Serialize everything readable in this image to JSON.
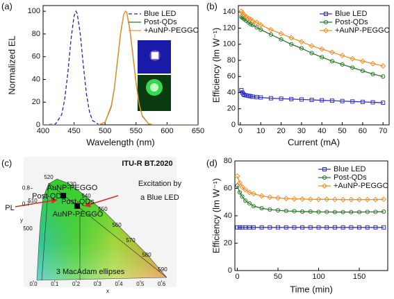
{
  "chart_data": [
    {
      "type": "line",
      "panel_label": "(a)",
      "xlabel": "Wavelength (nm)",
      "ylabel": "Normalized EL",
      "x": [
        400,
        420,
        430,
        435,
        440,
        445,
        450,
        453,
        455,
        460,
        465,
        470,
        475,
        480,
        490,
        500,
        510,
        515,
        520,
        525,
        530,
        533,
        535,
        540,
        545,
        550,
        555,
        560,
        570,
        580,
        600,
        620,
        650
      ],
      "series": [
        {
          "name": "Blue LED",
          "color": "#2222bb",
          "dash": true,
          "marker": null,
          "values": [
            0,
            0.7,
            9,
            23,
            46,
            75,
            96,
            100,
            98,
            80,
            52,
            27,
            11,
            3.7,
            0.2,
            0,
            0,
            0,
            0,
            0,
            0,
            0,
            0,
            0,
            0,
            0,
            0,
            0,
            0,
            0,
            0,
            0,
            0
          ]
        },
        {
          "name": "Post-QDs",
          "color": "#2a7a2a",
          "dash": false,
          "marker": null,
          "values": [
            0,
            0,
            0,
            0,
            0,
            0,
            0,
            0,
            0,
            0,
            0,
            0,
            0,
            0,
            0,
            2.3,
            16,
            32,
            56,
            80,
            97,
            100,
            99,
            84,
            61,
            37,
            19,
            8,
            1,
            0,
            0,
            0,
            0
          ]
        },
        {
          "name": "+AuNP-PEGGO",
          "color": "#f0902a",
          "dash": false,
          "marker": null,
          "values": [
            0,
            0,
            0,
            0,
            0,
            0,
            0,
            0,
            0,
            0,
            0,
            0,
            0,
            0,
            0,
            2.5,
            17,
            33,
            57,
            81,
            97,
            100,
            99,
            83,
            60,
            36,
            18,
            7.5,
            1,
            0,
            0,
            0,
            0
          ]
        }
      ],
      "xlim": [
        400,
        650
      ],
      "xticks": [
        400,
        450,
        500,
        550,
        600,
        650
      ],
      "ylim": [
        0,
        105
      ],
      "yticks": [
        0,
        20,
        40,
        60,
        80,
        100
      ],
      "legend": "upper right"
    },
    {
      "type": "line",
      "panel_label": "(b)",
      "xlabel": "Current (mA)",
      "ylabel": "Efficiency (lm W⁻¹)",
      "x": [
        0.5,
        1,
        1.5,
        2,
        3,
        4,
        5,
        6,
        8,
        10,
        15,
        20,
        25,
        30,
        35,
        40,
        45,
        50,
        55,
        60,
        65,
        70
      ],
      "series": [
        {
          "name": "Blue LED",
          "color": "#3030c8",
          "dash": false,
          "marker": "square",
          "values": [
            43,
            40,
            38,
            37,
            36.5,
            36,
            35.5,
            35,
            34.5,
            34,
            33,
            32.5,
            32,
            31.5,
            31,
            30.5,
            30,
            29.5,
            29,
            28.5,
            28,
            27.5
          ]
        },
        {
          "name": "Post-QDs",
          "color": "#2a7a2a",
          "dash": false,
          "marker": "circle",
          "values": [
            134,
            133,
            132,
            131,
            129,
            127,
            125,
            124,
            121,
            118,
            112,
            106,
            100,
            95,
            89,
            84,
            79,
            75,
            71,
            67,
            63,
            60
          ]
        },
        {
          "name": "+AuNP-PEGGO",
          "color": "#f0902a",
          "dash": false,
          "marker": "diamond",
          "values": [
            141,
            139,
            137,
            136,
            134,
            132,
            131,
            129,
            127,
            124,
            118,
            113,
            108,
            103,
            98,
            94,
            90,
            86,
            82,
            79,
            76,
            73
          ]
        }
      ],
      "xlim": [
        -1,
        73
      ],
      "xticks": [
        0,
        10,
        20,
        30,
        40,
        50,
        60,
        70
      ],
      "ylim": [
        0,
        148
      ],
      "yticks": [
        0,
        20,
        40,
        60,
        80,
        100,
        120,
        140
      ],
      "legend": "upper right"
    },
    {
      "type": "cie",
      "panel_label": "(c)",
      "title": "ITU-R BT.2020",
      "xlabel": "x",
      "ylabel": "y",
      "xlim": [
        0,
        0.65
      ],
      "xticks": [
        {
          "value": 0,
          "label": "0.0"
        },
        0.1,
        0.2,
        0.3,
        0.4,
        0.5,
        0.6
      ],
      "ylim": [
        0.2,
        0.85
      ],
      "yticks": [
        0.7,
        0.8
      ],
      "points": {
        "x": [
          0.14,
          0.205
        ],
        "y": [
          0.755,
          0.69
        ],
        "color": "#000000"
      },
      "locus_labels": [
        "500",
        "510",
        "520",
        "530",
        "540",
        "550",
        "560",
        "570",
        "580",
        "590"
      ],
      "annotations": [
        "AuNP-PEGGO",
        "Post-QDs",
        "Post-QDs",
        "AuNP-PEGGO",
        "Excitation by",
        "a Blue LED",
        "PL",
        "3 MacAdam ellipses"
      ]
    },
    {
      "type": "line",
      "panel_label": "(d)",
      "xlabel": "Time (min)",
      "ylabel": "Efficiency (lm W⁻¹)",
      "x": [
        0,
        3,
        6,
        10,
        15,
        20,
        30,
        40,
        50,
        60,
        70,
        80,
        90,
        100,
        110,
        120,
        130,
        140,
        150,
        160,
        170,
        180
      ],
      "series": [
        {
          "name": "Blue LED",
          "color": "#3030c8",
          "dash": false,
          "marker": "square",
          "values": [
            31.5,
            31.5,
            31.5,
            31.5,
            31.5,
            31.5,
            31.5,
            31.5,
            31.5,
            31.5,
            31.5,
            31.5,
            31.5,
            31.5,
            31.5,
            31.5,
            31.5,
            31.5,
            31.5,
            31.5,
            31.5,
            31.5
          ]
        },
        {
          "name": "Post-QDs",
          "color": "#2a7a2a",
          "dash": false,
          "marker": "circle",
          "values": [
            62,
            57,
            54,
            51,
            49,
            47,
            45.5,
            44.5,
            44,
            43.5,
            43.3,
            43,
            43,
            42.8,
            42.8,
            42.7,
            42.7,
            42.7,
            42.7,
            42.8,
            42.8,
            43
          ]
        },
        {
          "name": "+AuNP-PEGGO",
          "color": "#f0902a",
          "dash": false,
          "marker": "diamond",
          "values": [
            69,
            64,
            61,
            59,
            57,
            56,
            54.5,
            53.5,
            53,
            52.6,
            52.3,
            52.2,
            52,
            52,
            52,
            51.9,
            51.8,
            51.8,
            51.8,
            51.8,
            51.8,
            52
          ]
        }
      ],
      "xlim": [
        -3,
        185
      ],
      "xticks": [
        0,
        50,
        100,
        150
      ],
      "ylim": [
        0,
        80
      ],
      "yticks": [
        0,
        20,
        40,
        60,
        80
      ],
      "legend": "upper right"
    }
  ]
}
